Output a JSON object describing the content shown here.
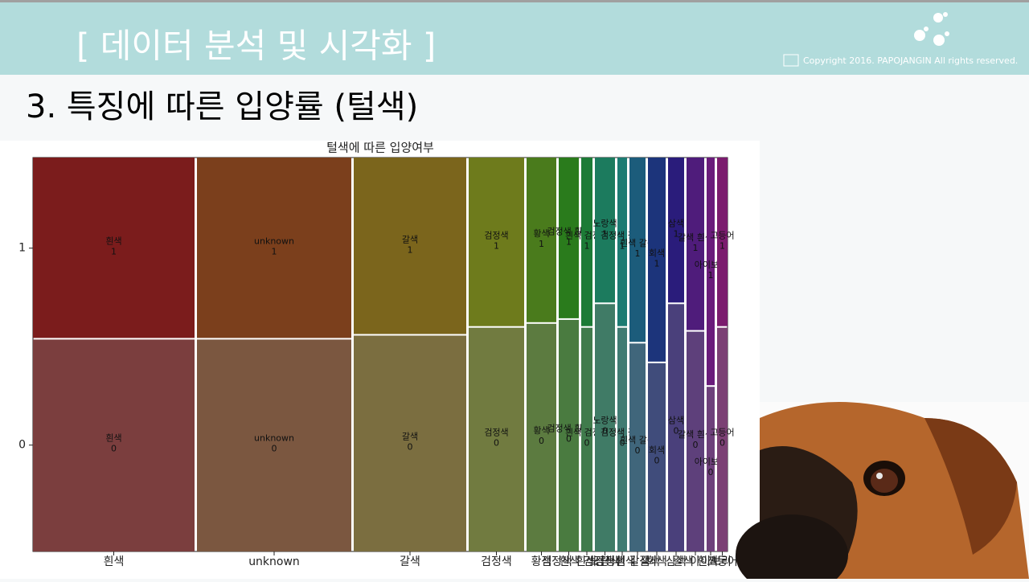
{
  "header": {
    "title": "[  데이터 분석 및 시각화 ]",
    "copyright": "Copyright 2016. PAPOJANGIN All rights reserved."
  },
  "heading": "3. 특징에 따른 입양률 (털색)",
  "chart_data": {
    "type": "mosaic",
    "title": "털색에 따른 입양여부",
    "categories": [
      "흰색",
      "unknown",
      "갈색",
      "검정색",
      "황색",
      "검정색 흰색",
      "흰색 검정색",
      "노랑색",
      "검정색 갈색",
      "흰색 갈색",
      "회색",
      "삼색",
      "갈색 흰색",
      "아이보리",
      "고등어"
    ],
    "widths": [
      201,
      192,
      140,
      69,
      37,
      25,
      14,
      25,
      12,
      20,
      22,
      20,
      22,
      10,
      13
    ],
    "series": [
      {
        "name": "0",
        "values": [
          0.54,
          0.54,
          0.55,
          0.57,
          0.58,
          0.59,
          0.57,
          0.63,
          0.57,
          0.53,
          0.48,
          0.63,
          0.56,
          0.42,
          0.57
        ],
        "colors": [
          "#7b3e3e",
          "#7b5740",
          "#7b6e40",
          "#717b40",
          "#5c7b40",
          "#4a7b40",
          "#407b4c",
          "#407b66",
          "#407b72",
          "#40667b",
          "#404c7b",
          "#4a407b",
          "#5e407b",
          "#6e407b",
          "#7b4074"
        ]
      },
      {
        "name": "1",
        "values": [
          0.46,
          0.46,
          0.45,
          0.43,
          0.42,
          0.41,
          0.43,
          0.37,
          0.43,
          0.47,
          0.52,
          0.37,
          0.44,
          0.58,
          0.43
        ],
        "colors": [
          "#7b1c1c",
          "#7b3f1c",
          "#7b651c",
          "#6e7b1c",
          "#4a7b1c",
          "#2a7b1c",
          "#1c7b36",
          "#1c7b5e",
          "#1c7b72",
          "#1c5c7b",
          "#1c347b",
          "#2a1c7b",
          "#4f1c7b",
          "#6a1c7b",
          "#7b1c6e"
        ]
      }
    ]
  }
}
